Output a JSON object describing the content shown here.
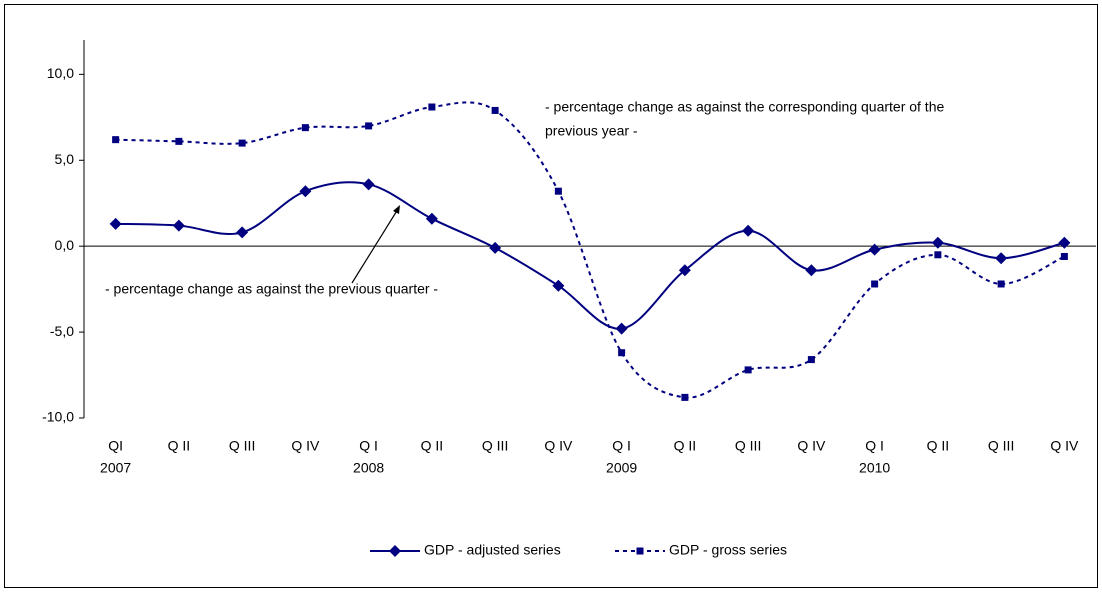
{
  "chart_data": {
    "type": "line",
    "categories": [
      "QI",
      "Q II",
      "Q III",
      "Q IV",
      "Q I",
      "Q II",
      "Q III",
      "Q IV",
      "Q I",
      "Q II",
      "Q III",
      "Q IV",
      "Q I",
      "Q II",
      "Q III",
      "Q IV"
    ],
    "years": [
      "2007",
      null,
      null,
      null,
      "2008",
      null,
      null,
      null,
      "2009",
      null,
      null,
      null,
      "2010",
      null,
      null,
      null
    ],
    "series": [
      {
        "name": "GDP - adjusted series",
        "color": "#000080",
        "marker": "diamond",
        "dashed": false,
        "values": [
          1.3,
          1.2,
          0.8,
          3.2,
          3.6,
          1.6,
          -0.1,
          -2.3,
          -4.8,
          -1.4,
          0.9,
          -1.4,
          -0.2,
          0.2,
          -0.7,
          0.2
        ]
      },
      {
        "name": "GDP - gross series",
        "color": "#000080",
        "marker": "square",
        "dashed": true,
        "values": [
          6.2,
          6.1,
          6.0,
          6.9,
          7.0,
          8.1,
          7.9,
          3.2,
          -6.2,
          -8.8,
          -7.2,
          -6.6,
          -2.2,
          -0.5,
          -2.2,
          -0.6
        ]
      }
    ],
    "ylim": [
      -10,
      12
    ],
    "yticks": [
      {
        "value": -10,
        "label": "-10,0"
      },
      {
        "value": -5,
        "label": "-5,0"
      },
      {
        "value": 0,
        "label": "0,0"
      },
      {
        "value": 5,
        "label": "5,0"
      },
      {
        "value": 10,
        "label": "10,0"
      }
    ],
    "annotations": [
      {
        "lines": [
          "- percentage change as against the corresponding quarter of the",
          "previous year -"
        ]
      },
      {
        "lines": [
          "- percentage change as against the previous quarter -"
        ]
      }
    ],
    "grid": false,
    "legend": "bottom"
  }
}
